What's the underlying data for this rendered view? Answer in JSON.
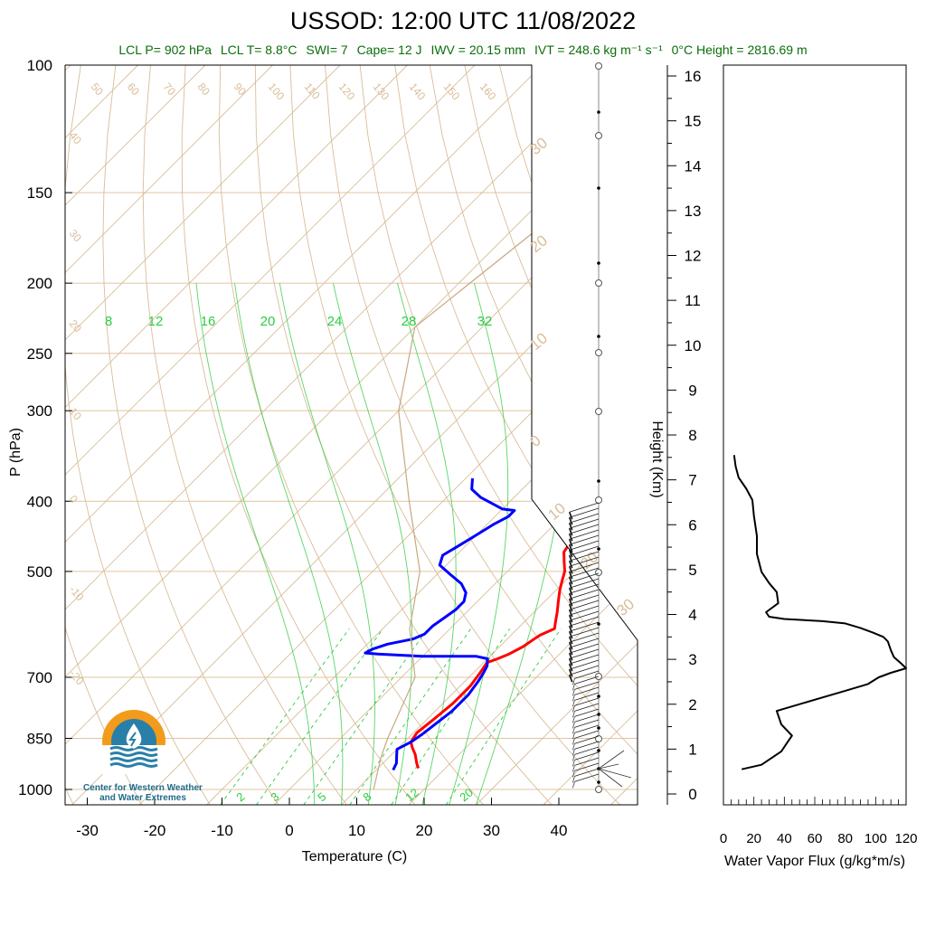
{
  "title": "USSOD: 12:00 UTC 11/08/2022",
  "stats": {
    "lcl_p": "LCL P= 902 hPa",
    "lcl_t": "LCL T= 8.8°C",
    "swi": "SWI= 7",
    "cape": "Cape= 12 J",
    "iwv": "IWV = 20.15 mm",
    "ivt": "IVT = 248.6 kg m⁻¹ s⁻¹",
    "zero_height": "0°C Height = 2816.69 m"
  },
  "logo": {
    "line1": "Center for Western Weather",
    "line2": "and Water Extremes"
  },
  "colors": {
    "temperature": "#ff0000",
    "dewpoint": "#0000ff",
    "dry_adiabat": "#d9bd9a",
    "moist_adiabat": "#2ecc40",
    "mixing_ratio": "#2ecc40",
    "isobar": "#e0c4a0",
    "parcel": "#c8a880",
    "stats_text": "#0a6e0a"
  },
  "chart_data": [
    {
      "type": "line",
      "subtype": "skew-t log-p",
      "xlabel": "Temperature (C)",
      "ylabel": "P (hPa)",
      "xlim": [
        -35,
        50
      ],
      "ylim": [
        1050,
        100
      ],
      "x_ticks": [
        "-30",
        "-20",
        "-10",
        "0",
        "10",
        "20",
        "30",
        "40"
      ],
      "y_ticks": [
        "100",
        "150",
        "200",
        "250",
        "300",
        "400",
        "500",
        "700",
        "850",
        "1000"
      ],
      "y_scale": "log",
      "dry_adiabat_labels": [
        "50",
        "60",
        "70",
        "80",
        "90",
        "100",
        "110",
        "120",
        "130",
        "140",
        "150",
        "160",
        "40",
        "30",
        "20",
        "10",
        "0",
        "-10",
        "-20"
      ],
      "isotherm_labels": [
        "30",
        "20",
        "10",
        "0",
        "10",
        "20",
        "30"
      ],
      "moist_labels": [
        "8",
        "12",
        "16",
        "20",
        "24",
        "28",
        "32"
      ],
      "mixing_ratio_labels": [
        "2",
        "3",
        "5",
        "8",
        "12",
        "20"
      ],
      "series": [
        {
          "name": "Temperature",
          "points": [
            [
              16,
              935
            ],
            [
              15,
              920
            ],
            [
              13.5,
              895
            ],
            [
              12,
              875
            ],
            [
              11,
              860
            ],
            [
              10.5,
              835
            ],
            [
              11,
              800
            ],
            [
              11.5,
              760
            ],
            [
              11.5,
              720
            ],
            [
              11,
              690
            ],
            [
              10.5,
              668
            ],
            [
              11.5,
              660
            ],
            [
              12.5,
              650
            ],
            [
              13.5,
              635
            ],
            [
              14,
              620
            ],
            [
              14.3,
              612
            ],
            [
              15.5,
              600
            ],
            [
              14.5,
              585
            ],
            [
              13.5,
              570
            ],
            [
              12,
              550
            ],
            [
              10.5,
              530
            ],
            [
              9.5,
              515
            ],
            [
              8.5,
              500
            ],
            [
              7,
              485
            ],
            [
              5.5,
              470
            ],
            [
              5,
              455
            ],
            [
              4.5,
              440
            ],
            [
              5,
              425
            ],
            [
              5,
              410
            ],
            [
              5.5,
              400
            ],
            [
              5.5,
              390
            ],
            [
              5,
              380
            ],
            [
              4.5,
              372
            ]
          ]
        },
        {
          "name": "Dewpoint",
          "points": [
            [
              12.5,
              940
            ],
            [
              12,
              920
            ],
            [
              11,
              900
            ],
            [
              10,
              880
            ],
            [
              11,
              860
            ],
            [
              11.5,
              840
            ],
            [
              12,
              810
            ],
            [
              12.5,
              780
            ],
            [
              12.5,
              740
            ],
            [
              12,
              710
            ],
            [
              11.5,
              690
            ],
            [
              11,
              675
            ],
            [
              10,
              660
            ],
            [
              8,
              655
            ],
            [
              0,
              655
            ],
            [
              -7,
              650
            ],
            [
              -9,
              648
            ],
            [
              -8.5,
              640
            ],
            [
              -7,
              630
            ],
            [
              -4,
              620
            ],
            [
              -3,
              610
            ],
            [
              -3,
              595
            ],
            [
              -2.5,
              580
            ],
            [
              -2,
              565
            ],
            [
              -2,
              550
            ],
            [
              -3,
              535
            ],
            [
              -5,
              520
            ],
            [
              -8,
              505
            ],
            [
              -11,
              490
            ],
            [
              -12,
              475
            ],
            [
              -11,
              460
            ],
            [
              -10,
              445
            ],
            [
              -9,
              430
            ],
            [
              -8,
              420
            ],
            [
              -8,
              412
            ],
            [
              -10,
              410
            ],
            [
              -15,
              395
            ],
            [
              -17.5,
              385
            ],
            [
              -19,
              372
            ]
          ]
        },
        {
          "name": "Parcel",
          "points": [
            [
              12.5,
              1000
            ],
            [
              8.8,
              902
            ],
            [
              7,
              850
            ],
            [
              2,
              700
            ],
            [
              -6,
              600
            ],
            [
              -13,
              500
            ],
            [
              -25,
              400
            ],
            [
              -40,
              300
            ],
            [
              -50,
              230
            ],
            [
              -45,
              150
            ],
            [
              -40,
              100
            ]
          ]
        }
      ],
      "wind_barbs_present": true,
      "zero_height_m": 2816.69
    },
    {
      "type": "line",
      "xlabel": "Water Vapor Flux (g/kg*m/s)",
      "ylabel": "Height (Km)",
      "xlim": [
        0,
        120
      ],
      "ylim": [
        0,
        16.5
      ],
      "x_ticks": [
        "0",
        "20",
        "40",
        "60",
        "80",
        "100",
        "120"
      ],
      "y_ticks": [
        "0",
        "1",
        "2",
        "3",
        "4",
        "5",
        "6",
        "7",
        "8",
        "9",
        "10",
        "11",
        "12",
        "13",
        "14",
        "15",
        "16"
      ],
      "series": [
        {
          "name": "Water Vapor Flux",
          "points": [
            [
              12,
              0.55
            ],
            [
              25,
              0.65
            ],
            [
              38,
              0.95
            ],
            [
              42,
              1.15
            ],
            [
              45,
              1.3
            ],
            [
              38,
              1.55
            ],
            [
              35,
              1.85
            ],
            [
              45,
              1.95
            ],
            [
              65,
              2.15
            ],
            [
              80,
              2.3
            ],
            [
              95,
              2.45
            ],
            [
              102,
              2.6
            ],
            [
              110,
              2.7
            ],
            [
              115,
              2.75
            ],
            [
              120,
              2.8
            ],
            [
              117,
              2.9
            ],
            [
              112,
              3.05
            ],
            [
              110,
              3.2
            ],
            [
              108,
              3.4
            ],
            [
              105,
              3.5
            ],
            [
              98,
              3.6
            ],
            [
              90,
              3.7
            ],
            [
              80,
              3.8
            ],
            [
              65,
              3.85
            ],
            [
              40,
              3.9
            ],
            [
              30,
              3.95
            ],
            [
              28,
              4.05
            ],
            [
              36,
              4.25
            ],
            [
              35,
              4.5
            ],
            [
              30,
              4.7
            ],
            [
              25,
              4.95
            ],
            [
              22,
              5.35
            ],
            [
              22,
              5.75
            ],
            [
              20,
              6.2
            ],
            [
              19,
              6.55
            ],
            [
              15,
              6.8
            ],
            [
              10,
              7.05
            ],
            [
              8,
              7.3
            ],
            [
              7,
              7.55
            ]
          ]
        }
      ]
    }
  ]
}
